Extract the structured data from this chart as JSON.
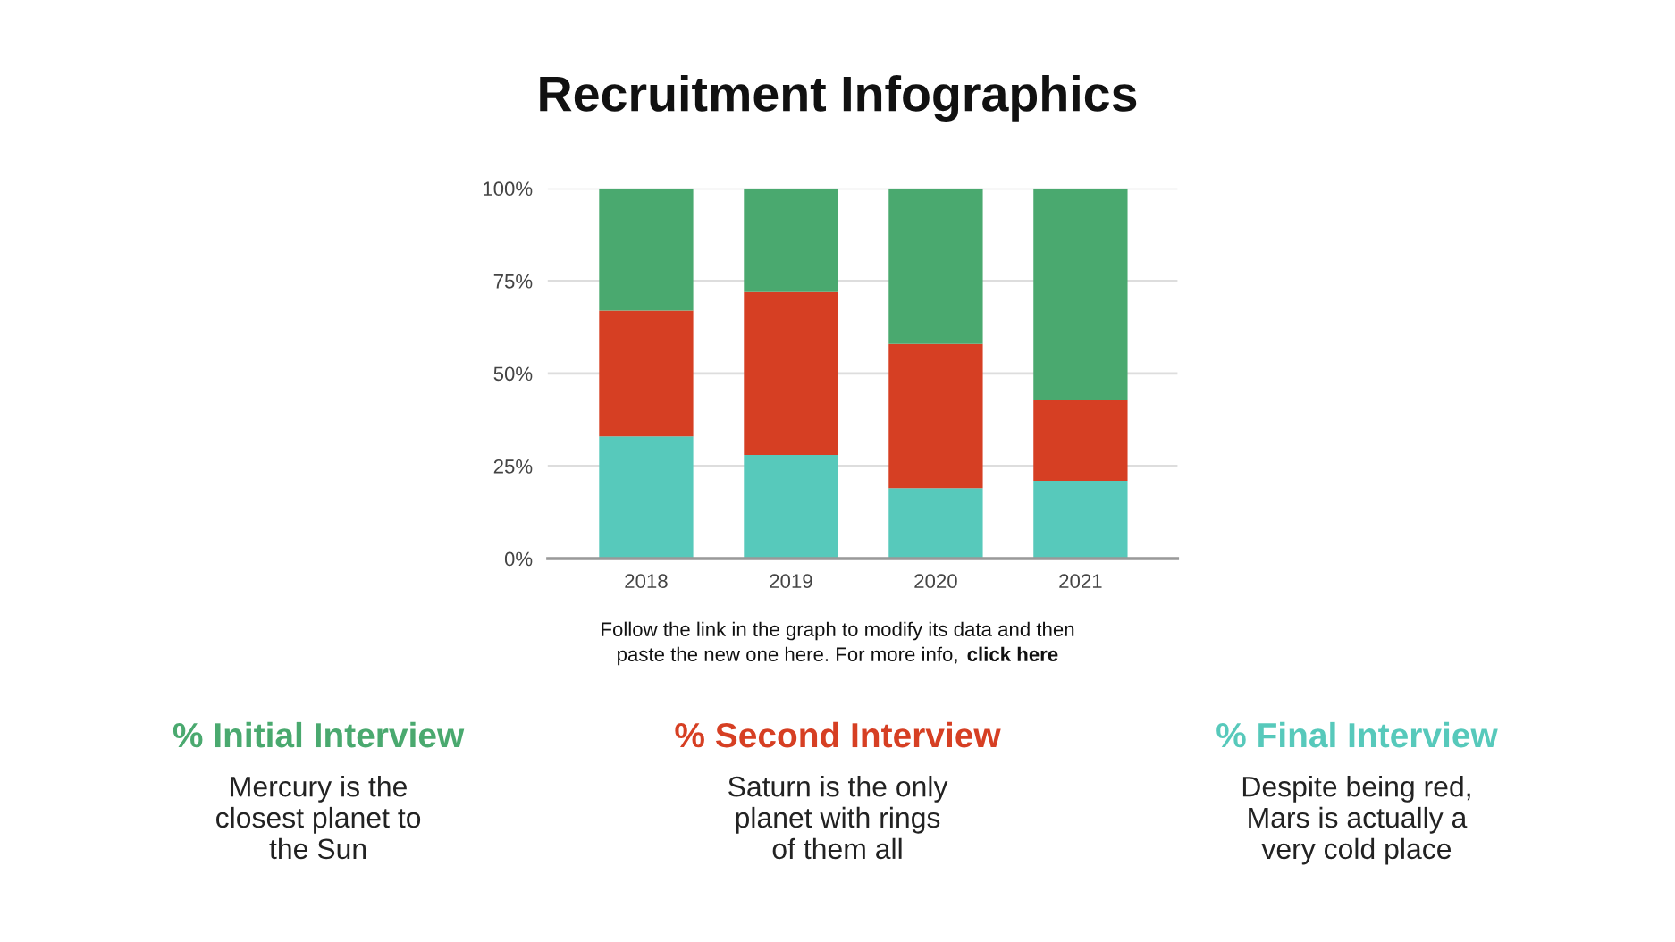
{
  "chart_data": {
    "type": "bar",
    "title": "Recruitment Infographics",
    "categories": [
      "2018",
      "2019",
      "2020",
      "2021"
    ],
    "stacked": true,
    "series": [
      {
        "name": "% Final Interview",
        "color": "#57c9bb",
        "values": [
          33,
          28,
          19,
          21
        ]
      },
      {
        "name": "% Second Interview",
        "color": "#d63f23",
        "values": [
          34,
          44,
          39,
          22
        ]
      },
      {
        "name": "% Initial Interview",
        "color": "#4aa96f",
        "values": [
          33,
          28,
          42,
          57
        ]
      }
    ],
    "ylim": [
      0,
      100
    ],
    "yticks": [
      {
        "value": 0,
        "label": "0%"
      },
      {
        "value": 25,
        "label": "25%"
      },
      {
        "value": 50,
        "label": "50%"
      },
      {
        "value": 75,
        "label": "75%"
      },
      {
        "value": 100,
        "label": "100%"
      }
    ],
    "grid": "y",
    "legend": "bottom",
    "annotations": [
      "Follow the link in the graph to modify its data and then\npaste the new one here. For more info,",
      "click here",
      "Mercury is the\nclosest planet to\nthe Sun",
      "Saturn is the only\nplanet with rings\nof them all",
      "Despite being red,\nMars is actually a\nvery cold place"
    ]
  }
}
